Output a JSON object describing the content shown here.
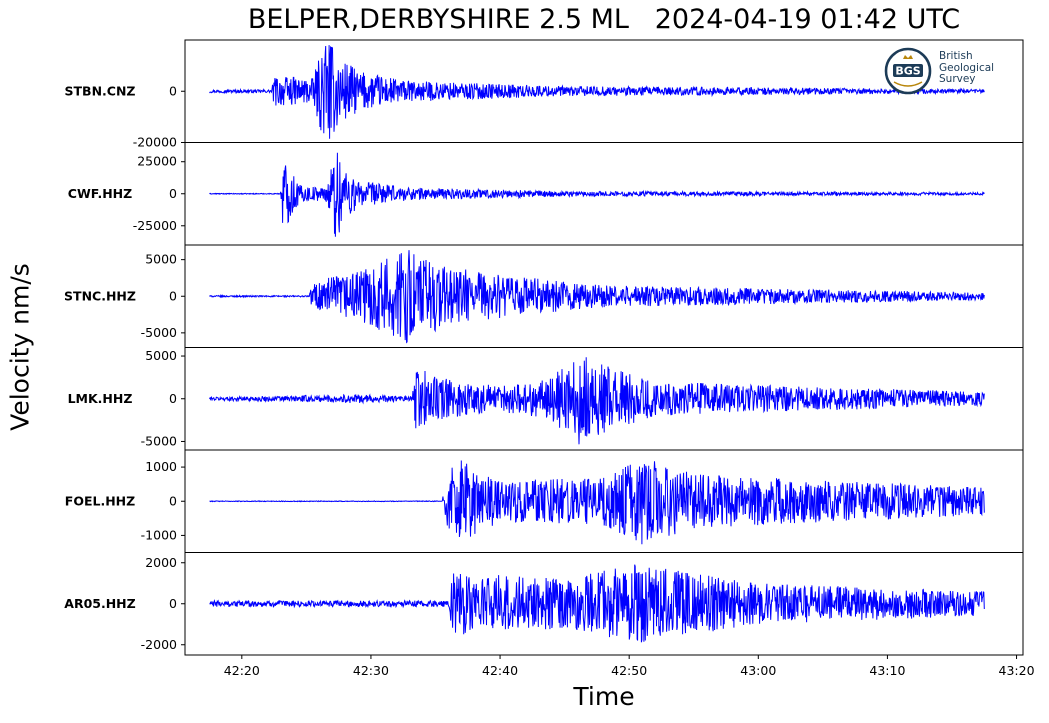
{
  "chart_data": {
    "type": "line",
    "title": "BELPER,DERBYSHIRE 2.5 ML   2024-04-19 01:42 UTC",
    "xlabel": "Time",
    "ylabel": "Velocity nm/s",
    "x_ticks": [
      "42:20",
      "42:30",
      "42:40",
      "42:50",
      "43:00",
      "43:10",
      "43:20"
    ],
    "x_range": [
      "42:15.6",
      "43:20.5"
    ],
    "trace_start": "42:17.5",
    "trace_end": "43:17.5",
    "line_color": "#0000ff",
    "grid": false,
    "legend": "none",
    "series": [
      {
        "name": "STBN.CNZ",
        "ylim": [
          -20000,
          20000
        ],
        "y_ticks": [
          0,
          -20000
        ],
        "y_tick_labels": [
          "0",
          "-20000"
        ],
        "noise_amplitude": 600,
        "envelope": [
          [
            "42:17.5",
            600
          ],
          [
            "42:22.3",
            600
          ],
          [
            "42:22.5",
            6000
          ],
          [
            "42:25.5",
            5000
          ],
          [
            "42:26.5",
            22000
          ],
          [
            "42:27.5",
            14000
          ],
          [
            "42:29",
            8000
          ],
          [
            "42:33",
            4000
          ],
          [
            "42:45",
            2000
          ],
          [
            "43:17.5",
            800
          ]
        ]
      },
      {
        "name": "CWF.HHZ",
        "ylim": [
          -40000,
          40000
        ],
        "y_ticks": [
          25000,
          0,
          -25000
        ],
        "y_tick_labels": [
          "25000",
          "0",
          "-25000"
        ],
        "noise_amplitude": 300,
        "envelope": [
          [
            "42:17.5",
            300
          ],
          [
            "42:23",
            300
          ],
          [
            "42:23.2",
            30000
          ],
          [
            "42:24.5",
            7000
          ],
          [
            "42:26.5",
            5000
          ],
          [
            "42:27.3",
            38000
          ],
          [
            "42:29",
            10000
          ],
          [
            "42:33",
            5000
          ],
          [
            "42:45",
            2000
          ],
          [
            "43:17.5",
            1000
          ]
        ]
      },
      {
        "name": "STNC.HHZ",
        "ylim": [
          -7000,
          7000
        ],
        "y_ticks": [
          5000,
          0,
          -5000
        ],
        "y_tick_labels": [
          "5000",
          "0",
          "-5000"
        ],
        "noise_amplitude": 100,
        "envelope": [
          [
            "42:17.5",
            100
          ],
          [
            "42:25.2",
            100
          ],
          [
            "42:25.5",
            2000
          ],
          [
            "42:29",
            3500
          ],
          [
            "42:33",
            6500
          ],
          [
            "42:36",
            4000
          ],
          [
            "42:40",
            3000
          ],
          [
            "42:48",
            1500
          ],
          [
            "43:17.5",
            500
          ]
        ]
      },
      {
        "name": "LMK.HHZ",
        "ylim": [
          -6000,
          6000
        ],
        "y_ticks": [
          5000,
          0,
          -5000
        ],
        "y_tick_labels": [
          "5000",
          "0",
          "-5000"
        ],
        "noise_amplitude": 250,
        "envelope": [
          [
            "42:17.5",
            200
          ],
          [
            "42:29",
            500
          ],
          [
            "42:33.2",
            300
          ],
          [
            "42:33.5",
            4000
          ],
          [
            "42:35",
            2500
          ],
          [
            "42:40",
            1500
          ],
          [
            "42:44",
            2500
          ],
          [
            "42:46",
            5500
          ],
          [
            "42:48",
            4000
          ],
          [
            "42:52",
            2000
          ],
          [
            "43:17.5",
            800
          ]
        ]
      },
      {
        "name": "FOEL.HHZ",
        "ylim": [
          -1500,
          1500
        ],
        "y_ticks": [
          1000,
          0,
          -1000
        ],
        "y_tick_labels": [
          "1000",
          "0",
          "-1000"
        ],
        "noise_amplitude": 10,
        "envelope": [
          [
            "42:17.5",
            10
          ],
          [
            "42:35.5",
            10
          ],
          [
            "42:36",
            900
          ],
          [
            "42:37",
            1200
          ],
          [
            "42:40",
            600
          ],
          [
            "42:48",
            700
          ],
          [
            "42:51",
            1300
          ],
          [
            "42:55",
            800
          ],
          [
            "43:00",
            700
          ],
          [
            "43:17.5",
            400
          ]
        ]
      },
      {
        "name": "AR05.HHZ",
        "ylim": [
          -2500,
          2500
        ],
        "y_ticks": [
          2000,
          0,
          -2000
        ],
        "y_tick_labels": [
          "2000",
          "0",
          "-2000"
        ],
        "noise_amplitude": 150,
        "envelope": [
          [
            "42:17.5",
            150
          ],
          [
            "42:36",
            150
          ],
          [
            "42:36.3",
            1500
          ],
          [
            "42:38",
            1500
          ],
          [
            "42:45",
            1200
          ],
          [
            "42:51",
            2000
          ],
          [
            "42:53",
            1700
          ],
          [
            "43:00",
            1000
          ],
          [
            "43:17.5",
            600
          ]
        ]
      }
    ]
  },
  "logo": {
    "name": "BGS logo",
    "abbr": "BGS",
    "lines": [
      "British",
      "Geological",
      "Survey"
    ],
    "color": "#1c3b57",
    "accent": "#b8860b"
  }
}
